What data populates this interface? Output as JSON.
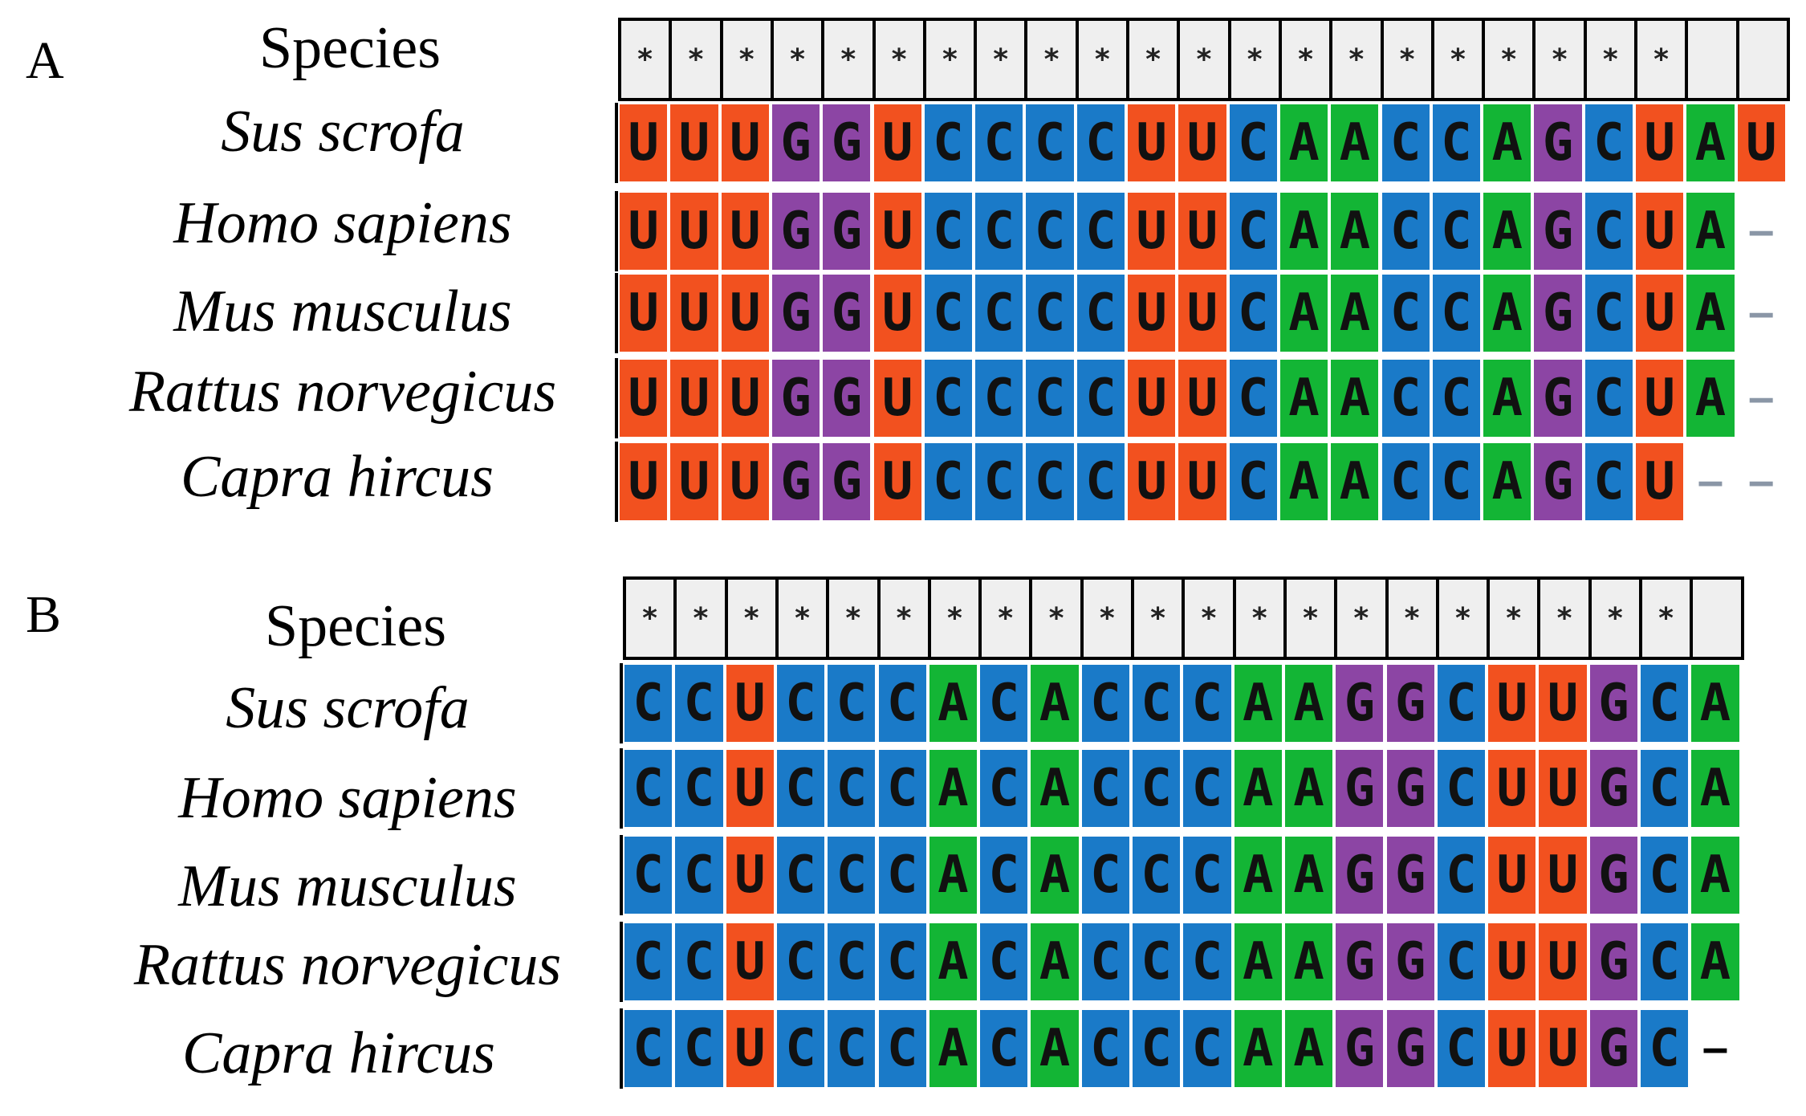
{
  "colors": {
    "U": "#f2511f",
    "G": "#8c45a4",
    "C": "#1a7ac8",
    "A": "#13b535",
    "header": "#efefef"
  },
  "panels": [
    {
      "id": "A",
      "letter": "A",
      "species_header": "Species",
      "columns": 23,
      "conserved_marks": [
        "*",
        "*",
        "*",
        "*",
        "*",
        "*",
        "*",
        "*",
        "*",
        "*",
        "*",
        "*",
        "*",
        "*",
        "*",
        "*",
        "*",
        "*",
        "*",
        "*",
        "*",
        "",
        ""
      ],
      "rows": [
        {
          "species": "Sus scrofa",
          "sequence": "UUUGGUCCCCUUCAACCAGCUAU"
        },
        {
          "species": "Homo sapiens",
          "sequence": "UUUGGUCCCCUUCAACCAGCUA-"
        },
        {
          "species": "Mus musculus",
          "sequence": "UUUGGUCCCCUUCAACCAGCUA-"
        },
        {
          "species": "Rattus norvegicus",
          "sequence": "UUUGGUCCCCUUCAACCAGCUA-"
        },
        {
          "species": "Capra hircus",
          "sequence": "UUUGGUCCCCUUCAACCAGCU--"
        }
      ]
    },
    {
      "id": "B",
      "letter": "B",
      "species_header": "Species",
      "columns": 22,
      "conserved_marks": [
        "*",
        "*",
        "*",
        "*",
        "*",
        "*",
        "*",
        "*",
        "*",
        "*",
        "*",
        "*",
        "*",
        "*",
        "*",
        "*",
        "*",
        "*",
        "*",
        "*",
        "*",
        ""
      ],
      "rows": [
        {
          "species": "Sus scrofa",
          "sequence": "CCUCCCACACCCAAGGCUUGCA"
        },
        {
          "species": "Homo sapiens",
          "sequence": "CCUCCCACACCCAAGGCUUGCA"
        },
        {
          "species": "Mus musculus",
          "sequence": "CCUCCCACACCCAAGGCUUGCA"
        },
        {
          "species": "Rattus norvegicus",
          "sequence": "CCUCCCACACCCAAGGCUUGCA"
        },
        {
          "species": "Capra hircus",
          "sequence": "CCUCCCACACCCAAGGCUUGC-"
        }
      ]
    }
  ]
}
